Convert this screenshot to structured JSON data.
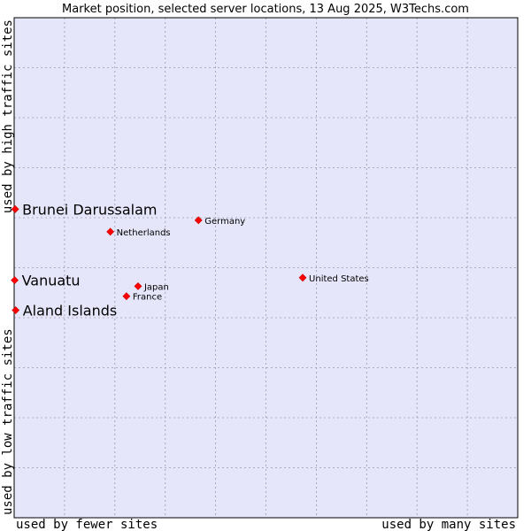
{
  "chart_data": {
    "type": "scatter",
    "title": "Market position, selected server locations, 13 Aug 2025, W3Techs.com",
    "xlabel_low": "used by fewer sites",
    "xlabel_high": "used by many sites",
    "ylabel_low": "used by low traffic sites",
    "ylabel_high": "used by high traffic sites",
    "xlim": [
      0,
      100
    ],
    "ylim": [
      0,
      100
    ],
    "grid": true,
    "colors": {
      "background": "#e6e6fa",
      "grid": "#9a9aaa",
      "marker": "#ff0000",
      "marker_edge": "#cc0000"
    },
    "points": [
      {
        "label": "Brunei Darussalam",
        "x": 0.2,
        "y": 61.7,
        "highlight": true
      },
      {
        "label": "Vanuatu",
        "x": 0.1,
        "y": 47.5,
        "highlight": true
      },
      {
        "label": "Aland Islands",
        "x": 0.3,
        "y": 41.5,
        "highlight": true
      },
      {
        "label": "Germany",
        "x": 36.6,
        "y": 59.5,
        "highlight": false
      },
      {
        "label": "Netherlands",
        "x": 19.1,
        "y": 57.2,
        "highlight": false
      },
      {
        "label": "United States",
        "x": 57.3,
        "y": 48.0,
        "highlight": false
      },
      {
        "label": "Japan",
        "x": 24.6,
        "y": 46.3,
        "highlight": false
      },
      {
        "label": "France",
        "x": 22.3,
        "y": 44.3,
        "highlight": false
      }
    ]
  }
}
